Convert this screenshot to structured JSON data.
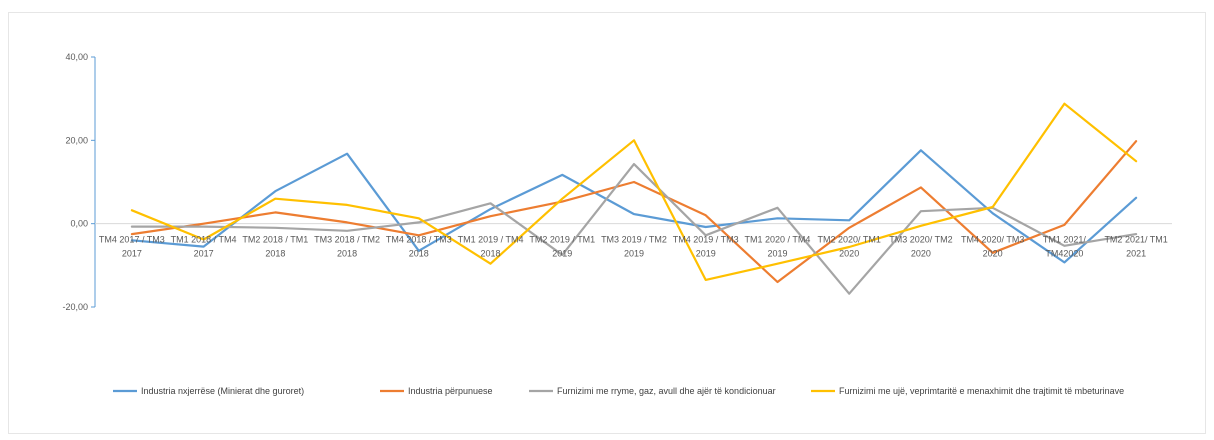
{
  "chart_data": {
    "type": "line",
    "title": "",
    "xlabel": "",
    "ylabel": "",
    "ylim": [
      -20,
      40
    ],
    "yticks": [
      "-20,00",
      "0,00",
      "20,00",
      "40,00"
    ],
    "ytick_values": [
      -20,
      0,
      20,
      40
    ],
    "categories": [
      [
        "TM4 2017 / TM3",
        "2017"
      ],
      [
        "TM1 2018 / TM4",
        "2017"
      ],
      [
        "TM2 2018 / TM1",
        "2018"
      ],
      [
        "TM3 2018 / TM2",
        "2018"
      ],
      [
        "TM4 2018 / TM3",
        "2018"
      ],
      [
        "TM1 2019 / TM4",
        "2018"
      ],
      [
        "TM2 2019 / TM1",
        "2019"
      ],
      [
        "TM3 2019 / TM2",
        "2019"
      ],
      [
        "TM4 2019 / TM3",
        "2019"
      ],
      [
        "TM1 2020 / TM4",
        "2019"
      ],
      [
        "TM2 2020/ TM1",
        "2020"
      ],
      [
        "TM3 2020/ TM2",
        "2020"
      ],
      [
        "TM4 2020/ TM3",
        "2020"
      ],
      [
        "TM1 2021/",
        "TM42020"
      ],
      [
        "TM2 2021/ TM1",
        "2021"
      ]
    ],
    "grid": false,
    "legend_position": "bottom",
    "series": [
      {
        "name": "Industria nxjerrëse (Minierat dhe guroret)",
        "color": "#5B9BD5",
        "values": [
          -4.0,
          -5.5,
          7.8,
          16.8,
          -6.5,
          3.5,
          11.7,
          2.3,
          -0.8,
          1.3,
          0.8,
          17.6,
          2.5,
          -9.3,
          6.2
        ]
      },
      {
        "name": "Industria përpunuese",
        "color": "#ED7D31",
        "values": [
          -2.5,
          0.0,
          2.7,
          0.3,
          -2.8,
          1.8,
          5.3,
          10.0,
          2.0,
          -14.0,
          -1.0,
          8.7,
          -7.0,
          -0.3,
          19.8
        ]
      },
      {
        "name": "Furnizimi me rryme, gaz, avull dhe ajër të kondicionuar",
        "color": "#A5A5A5",
        "values": [
          -0.7,
          -0.7,
          -1.0,
          -1.7,
          0.3,
          4.9,
          -7.5,
          14.3,
          -2.8,
          3.8,
          -16.8,
          3.0,
          3.8,
          -5.3,
          -2.5
        ]
      },
      {
        "name": "Furnizimi me ujë, veprimtaritë e menaxhimit dhe trajtimit të mbeturinave",
        "color": "#FFC000",
        "values": [
          3.2,
          -3.8,
          6.0,
          4.5,
          1.3,
          -9.6,
          6.0,
          20.0,
          -13.5,
          -9.6,
          -5.6,
          -0.5,
          4.0,
          28.8,
          15.0
        ]
      }
    ]
  }
}
